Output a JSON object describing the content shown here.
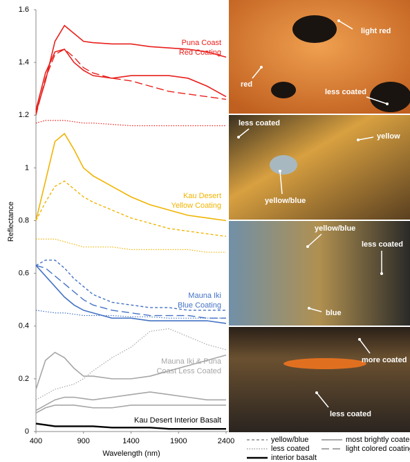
{
  "chart_data": {
    "type": "line",
    "ylabel": "Reflectance",
    "xlabel": "Wavelength (nm)",
    "x": [
      400,
      500,
      600,
      700,
      800,
      900,
      1000,
      1200,
      1400,
      1600,
      1800,
      2000,
      2200,
      2400
    ],
    "xlim": [
      400,
      2400
    ],
    "xticks": [
      400,
      900,
      1400,
      1900,
      2400
    ],
    "ylim": [
      0,
      1.6
    ],
    "yticks": [
      0,
      0.2,
      0.4,
      0.6,
      0.8,
      1,
      1.2,
      1.4,
      1.6
    ],
    "series": [
      {
        "color": "#e8201c",
        "style": "solid",
        "values": [
          1.21,
          1.33,
          1.48,
          1.54,
          1.51,
          1.48,
          1.475,
          1.47,
          1.47,
          1.46,
          1.455,
          1.45,
          1.44,
          1.42
        ]
      },
      {
        "color": "#e8201c",
        "style": "solid",
        "values": [
          1.22,
          1.36,
          1.44,
          1.45,
          1.4,
          1.37,
          1.35,
          1.34,
          1.35,
          1.35,
          1.35,
          1.34,
          1.31,
          1.27
        ]
      },
      {
        "color": "#e8201c",
        "style": "longdash",
        "values": [
          1.2,
          1.34,
          1.43,
          1.45,
          1.42,
          1.38,
          1.36,
          1.34,
          1.33,
          1.31,
          1.29,
          1.28,
          1.27,
          1.26
        ]
      },
      {
        "color": "#e8201c",
        "style": "dot",
        "values": [
          1.17,
          1.18,
          1.18,
          1.18,
          1.175,
          1.17,
          1.17,
          1.165,
          1.16,
          1.16,
          1.16,
          1.16,
          1.16,
          1.16
        ]
      },
      {
        "color": "#f0b400",
        "style": "solid",
        "values": [
          0.8,
          0.95,
          1.1,
          1.13,
          1.07,
          1.0,
          0.97,
          0.93,
          0.89,
          0.86,
          0.84,
          0.82,
          0.81,
          0.8
        ]
      },
      {
        "color": "#f0b400",
        "style": "dash",
        "values": [
          0.8,
          0.87,
          0.93,
          0.95,
          0.92,
          0.89,
          0.87,
          0.84,
          0.81,
          0.79,
          0.77,
          0.76,
          0.75,
          0.74
        ]
      },
      {
        "color": "#f0b400",
        "style": "dot",
        "values": [
          0.73,
          0.73,
          0.73,
          0.72,
          0.71,
          0.7,
          0.7,
          0.7,
          0.69,
          0.69,
          0.69,
          0.69,
          0.68,
          0.68
        ]
      },
      {
        "color": "#4472c4",
        "style": "dash",
        "values": [
          0.63,
          0.65,
          0.65,
          0.62,
          0.58,
          0.55,
          0.52,
          0.49,
          0.48,
          0.47,
          0.47,
          0.46,
          0.46,
          0.46
        ]
      },
      {
        "color": "#4472c4",
        "style": "longdash",
        "values": [
          0.63,
          0.62,
          0.59,
          0.56,
          0.53,
          0.5,
          0.48,
          0.46,
          0.45,
          0.44,
          0.44,
          0.44,
          0.43,
          0.43
        ]
      },
      {
        "color": "#4472c4",
        "style": "solid",
        "values": [
          0.63,
          0.59,
          0.55,
          0.51,
          0.48,
          0.46,
          0.45,
          0.43,
          0.43,
          0.42,
          0.42,
          0.42,
          0.42,
          0.41
        ]
      },
      {
        "color": "#4472c4",
        "style": "dot",
        "values": [
          0.46,
          0.455,
          0.45,
          0.45,
          0.445,
          0.44,
          0.44,
          0.44,
          0.435,
          0.435,
          0.43,
          0.43,
          0.43,
          0.43
        ]
      },
      {
        "color": "#a6a6a6",
        "style": "solid",
        "values": [
          0.16,
          0.27,
          0.3,
          0.28,
          0.24,
          0.21,
          0.21,
          0.2,
          0.2,
          0.21,
          0.23,
          0.25,
          0.27,
          0.29
        ]
      },
      {
        "color": "#a6a6a6",
        "style": "dot",
        "values": [
          0.12,
          0.14,
          0.16,
          0.17,
          0.18,
          0.2,
          0.23,
          0.28,
          0.32,
          0.38,
          0.39,
          0.36,
          0.33,
          0.31
        ]
      },
      {
        "color": "#a6a6a6",
        "style": "solid",
        "values": [
          0.08,
          0.1,
          0.12,
          0.13,
          0.13,
          0.125,
          0.12,
          0.13,
          0.14,
          0.15,
          0.14,
          0.13,
          0.12,
          0.12
        ]
      },
      {
        "color": "#a6a6a6",
        "style": "solid",
        "values": [
          0.07,
          0.09,
          0.1,
          0.1,
          0.1,
          0.095,
          0.09,
          0.09,
          0.1,
          0.1,
          0.1,
          0.1,
          0.1,
          0.1
        ]
      },
      {
        "color": "#000000",
        "style": "thick",
        "values": [
          0.03,
          0.025,
          0.02,
          0.02,
          0.02,
          0.02,
          0.02,
          0.015,
          0.015,
          0.015,
          0.01,
          0.01,
          0.01,
          0.01
        ]
      }
    ],
    "group_labels": [
      {
        "lines": [
          "Puna Coast",
          "Red Coating"
        ],
        "color": "#e8201c"
      },
      {
        "lines": [
          "Kau Desert",
          "Yellow Coating"
        ],
        "color": "#f0b400"
      },
      {
        "lines": [
          "Mauna Iki",
          "Blue Coating"
        ],
        "color": "#4472c4"
      },
      {
        "lines": [
          "Mauna Iki & Puna",
          "Coast Less Coated"
        ],
        "color": "#a6a6a6"
      },
      {
        "lines": [
          "Kau Desert Interior Basalt"
        ],
        "color": "#000000"
      }
    ],
    "legend": [
      {
        "label": "yellow/blue",
        "style": "dash"
      },
      {
        "label": "less coated",
        "style": "dot"
      },
      {
        "label": "interior basalt",
        "style": "thick"
      },
      {
        "label": "most brightly coated",
        "style": "solid"
      },
      {
        "label": "light colored coating",
        "style": "longdash"
      }
    ]
  },
  "panels": [
    {
      "labels": [
        "light red",
        "red",
        "less coated"
      ]
    },
    {
      "labels": [
        "less coated",
        "yellow",
        "yellow/blue"
      ]
    },
    {
      "labels": [
        "yellow/blue",
        "less coated",
        "blue"
      ]
    },
    {
      "labels": [
        "more coated",
        "less coated"
      ]
    }
  ]
}
